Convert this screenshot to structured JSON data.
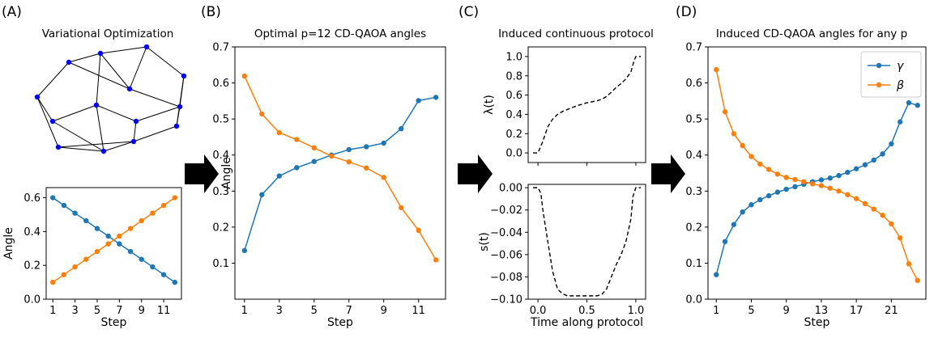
{
  "panels": {
    "A": {
      "letter": "(A)",
      "title": "Variational Optimization"
    },
    "B": {
      "letter": "(B)",
      "title": "Optimal p=12 CD-QAOA angles"
    },
    "C": {
      "letter": "(C)",
      "title": "Induced continuous protocol"
    },
    "D": {
      "letter": "(D)",
      "title": "Induced CD-QAOA angles for any p"
    }
  },
  "colors": {
    "gamma": "#1f77b4",
    "beta": "#ff7f0e",
    "graph_node": "#0000ff",
    "arrow": "#000000"
  },
  "chart_data": [
    {
      "id": "A-bottom",
      "type": "line",
      "xlabel": "Step",
      "ylabel": "Angle",
      "xlim": [
        0.4,
        12.6
      ],
      "ylim": [
        0.0,
        0.66
      ],
      "xticks": [
        1,
        3,
        5,
        7,
        9,
        11
      ],
      "yticks": [
        0.0,
        0.2,
        0.4,
        0.6
      ],
      "ytick_labels": [
        "0.0",
        "0.2",
        "0.4",
        "0.6"
      ],
      "series": [
        {
          "key": "gamma",
          "x": [
            1,
            2,
            3,
            4,
            5,
            6,
            7,
            8,
            9,
            10,
            11,
            12
          ],
          "values": [
            0.6,
            0.555,
            0.509,
            0.464,
            0.418,
            0.373,
            0.327,
            0.282,
            0.236,
            0.191,
            0.145,
            0.1
          ]
        },
        {
          "key": "beta",
          "x": [
            1,
            2,
            3,
            4,
            5,
            6,
            7,
            8,
            9,
            10,
            11,
            12
          ],
          "values": [
            0.1,
            0.145,
            0.191,
            0.236,
            0.282,
            0.327,
            0.373,
            0.418,
            0.464,
            0.509,
            0.555,
            0.6
          ]
        }
      ]
    },
    {
      "id": "B",
      "type": "line",
      "xlabel": "Step",
      "ylabel": "Angle",
      "xlim": [
        0.45,
        12.55
      ],
      "ylim": [
        0.0,
        0.7
      ],
      "xticks": [
        1,
        3,
        5,
        7,
        9,
        11
      ],
      "yticks": [
        0.1,
        0.2,
        0.3,
        0.4,
        0.5,
        0.6,
        0.7
      ],
      "ytick_labels": [
        "0.1",
        "0.2",
        "0.3",
        "0.4",
        "0.5",
        "0.6",
        "0.7"
      ],
      "series": [
        {
          "key": "gamma",
          "x": [
            1,
            2,
            3,
            4,
            5,
            6,
            7,
            8,
            9,
            10,
            11,
            12
          ],
          "values": [
            0.135,
            0.29,
            0.342,
            0.365,
            0.382,
            0.4,
            0.415,
            0.423,
            0.433,
            0.473,
            0.551,
            0.56
          ]
        },
        {
          "key": "beta",
          "x": [
            1,
            2,
            3,
            4,
            5,
            6,
            7,
            8,
            9,
            10,
            11,
            12
          ],
          "values": [
            0.619,
            0.514,
            0.462,
            0.443,
            0.42,
            0.397,
            0.381,
            0.364,
            0.338,
            0.254,
            0.191,
            0.109
          ]
        }
      ]
    },
    {
      "id": "C-top",
      "type": "line",
      "xlabel": "",
      "ylabel": "λ(t)",
      "xlim": [
        -0.1,
        1.1
      ],
      "ylim": [
        -0.1,
        1.1
      ],
      "xticks": [
        0.0,
        0.5,
        1.0
      ],
      "yticks": [
        0.0,
        0.2,
        0.4,
        0.6,
        0.8,
        1.0
      ],
      "ytick_labels": [
        "0.0",
        "0.2",
        "0.4",
        "0.6",
        "0.8",
        "1.0"
      ],
      "series": [
        {
          "key": "lambda",
          "style": "dashed",
          "x": [
            -0.05,
            0.0,
            0.05,
            0.1,
            0.15,
            0.2,
            0.25,
            0.3,
            0.35,
            0.4,
            0.45,
            0.5,
            0.55,
            0.6,
            0.65,
            0.7,
            0.75,
            0.8,
            0.85,
            0.9,
            0.95,
            0.98,
            1.0,
            1.05
          ],
          "values": [
            0.0,
            0.0,
            0.12,
            0.27,
            0.35,
            0.4,
            0.43,
            0.45,
            0.47,
            0.49,
            0.505,
            0.52,
            0.53,
            0.54,
            0.555,
            0.585,
            0.63,
            0.68,
            0.72,
            0.77,
            0.84,
            0.95,
            1.0,
            1.0
          ]
        }
      ]
    },
    {
      "id": "C-bottom",
      "type": "line",
      "xlabel": "Time along protocol",
      "ylabel": "s(t)",
      "xlim": [
        -0.1,
        1.1
      ],
      "ylim": [
        -0.1,
        0.003
      ],
      "xticks": [
        0.0,
        0.5,
        1.0
      ],
      "xtick_labels": [
        "0.0",
        "0.5",
        "1.0"
      ],
      "yticks": [
        0.0,
        -0.02,
        -0.04,
        -0.06,
        -0.08,
        -0.1
      ],
      "ytick_labels": [
        "0.00",
        "−0.02",
        "−0.04",
        "−0.06",
        "−0.08",
        "−0.10"
      ],
      "series": [
        {
          "key": "s",
          "style": "dashed",
          "x": [
            -0.05,
            0.0,
            0.03,
            0.05,
            0.1,
            0.15,
            0.2,
            0.25,
            0.3,
            0.35,
            0.4,
            0.45,
            0.5,
            0.55,
            0.6,
            0.65,
            0.7,
            0.75,
            0.8,
            0.85,
            0.9,
            0.95,
            0.97,
            1.0,
            1.05
          ],
          "values": [
            0.0,
            0.0,
            -0.005,
            -0.02,
            -0.048,
            -0.075,
            -0.091,
            -0.095,
            -0.097,
            -0.097,
            -0.097,
            -0.097,
            -0.097,
            -0.097,
            -0.097,
            -0.096,
            -0.091,
            -0.08,
            -0.069,
            -0.06,
            -0.048,
            -0.028,
            -0.008,
            0.0,
            0.0
          ]
        }
      ]
    },
    {
      "id": "D",
      "type": "line",
      "xlabel": "Step",
      "ylabel": "",
      "xlim": [
        0.05,
        24.95
      ],
      "ylim": [
        0.0,
        0.7
      ],
      "xticks": [
        1,
        5,
        9,
        13,
        17,
        21
      ],
      "yticks": [
        0.0,
        0.1,
        0.2,
        0.3,
        0.4,
        0.5,
        0.6,
        0.7
      ],
      "ytick_labels": [
        "0.0",
        "0.1",
        "0.2",
        "0.3",
        "0.4",
        "0.5",
        "0.6",
        "0.7"
      ],
      "legend": {
        "location": "top-right",
        "entries": [
          {
            "key": "gamma",
            "label": "γ"
          },
          {
            "key": "beta",
            "label": "β"
          }
        ]
      },
      "series": [
        {
          "key": "gamma",
          "x": [
            1,
            2,
            3,
            4,
            5,
            6,
            7,
            8,
            9,
            10,
            11,
            12,
            13,
            14,
            15,
            16,
            17,
            18,
            19,
            20,
            21,
            22,
            23,
            24
          ],
          "values": [
            0.068,
            0.16,
            0.207,
            0.242,
            0.262,
            0.276,
            0.287,
            0.297,
            0.305,
            0.312,
            0.319,
            0.326,
            0.331,
            0.336,
            0.343,
            0.352,
            0.362,
            0.373,
            0.386,
            0.403,
            0.431,
            0.492,
            0.545,
            0.538
          ]
        },
        {
          "key": "beta",
          "x": [
            1,
            2,
            3,
            4,
            5,
            6,
            7,
            8,
            9,
            10,
            11,
            12,
            13,
            14,
            15,
            16,
            17,
            18,
            19,
            20,
            21,
            22,
            23,
            24
          ],
          "values": [
            0.637,
            0.52,
            0.459,
            0.426,
            0.396,
            0.375,
            0.36,
            0.347,
            0.338,
            0.332,
            0.326,
            0.32,
            0.315,
            0.308,
            0.3,
            0.29,
            0.279,
            0.265,
            0.25,
            0.233,
            0.209,
            0.17,
            0.098,
            0.052
          ]
        }
      ]
    }
  ]
}
